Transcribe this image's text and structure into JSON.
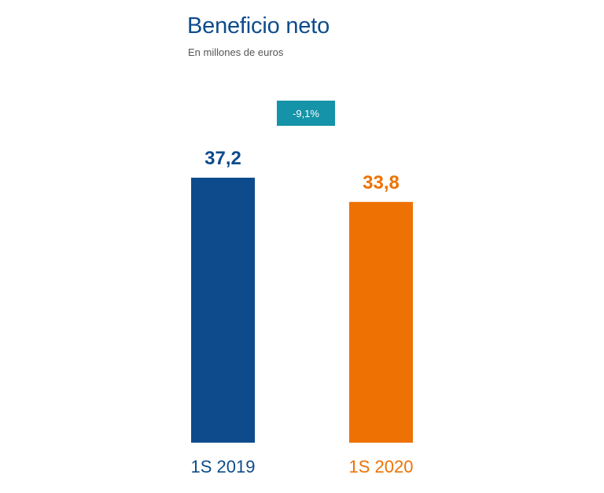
{
  "chart_data": {
    "type": "bar",
    "title": "Beneficio neto",
    "subtitle": "En millones de euros",
    "categories": [
      "1S 2019",
      "1S 2020"
    ],
    "values": [
      37.2,
      33.8
    ],
    "value_labels": [
      "37,2",
      "33,8"
    ],
    "colors": [
      "#0e4b8c",
      "#ee7203"
    ],
    "ylim": [
      0,
      37.2
    ],
    "grid": false,
    "change_label": "-9,1%"
  }
}
